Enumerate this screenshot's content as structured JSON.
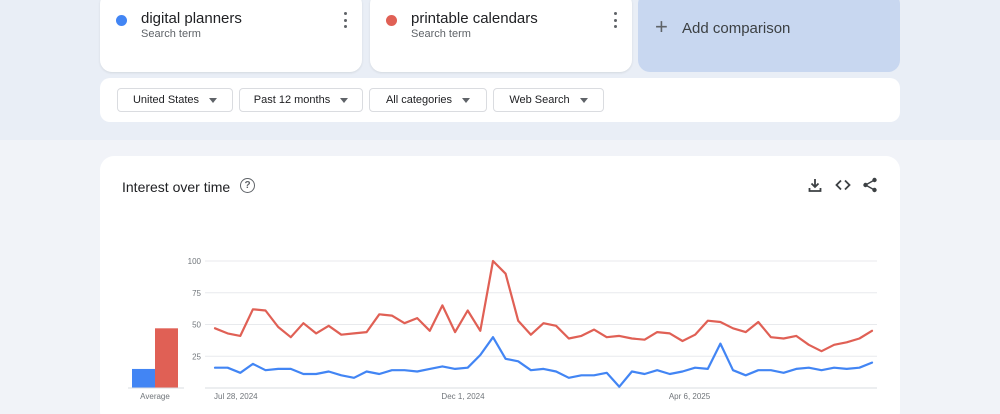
{
  "terms": [
    {
      "name": "digital planners",
      "subtitle": "Search term",
      "color": "#4285f4"
    },
    {
      "name": "printable calendars",
      "subtitle": "Search term",
      "color": "#e06055"
    }
  ],
  "add_comparison": {
    "plus": "+",
    "label": "Add comparison"
  },
  "filters": [
    {
      "label": "United States"
    },
    {
      "label": "Past 12 months"
    },
    {
      "label": "All categories"
    },
    {
      "label": "Web Search"
    }
  ],
  "panel": {
    "title": "Interest over time",
    "help_glyph": "?"
  },
  "chart_data": {
    "type": "line",
    "y_ticks": [
      "100",
      "75",
      "50",
      "25"
    ],
    "ylim": [
      0,
      100
    ],
    "x_labels": [
      {
        "label": "Jul 28, 2024",
        "index": 0
      },
      {
        "label": "Dec 1, 2024",
        "index": 18
      },
      {
        "label": "Apr 6, 2025",
        "index": 36
      }
    ],
    "series": [
      {
        "name": "printable calendars",
        "color": "#e06055",
        "values": [
          47,
          43,
          41,
          62,
          61,
          48,
          40,
          51,
          43,
          49,
          42,
          43,
          44,
          58,
          57,
          51,
          55,
          45,
          65,
          44,
          61,
          45,
          100,
          90,
          53,
          42,
          51,
          49,
          39,
          41,
          46,
          40,
          41,
          39,
          38,
          44,
          43,
          37,
          42,
          53,
          52,
          47,
          44,
          52,
          40,
          39,
          41,
          34,
          29,
          34,
          36,
          39,
          45
        ]
      },
      {
        "name": "digital planners",
        "color": "#4285f4",
        "values": [
          16,
          16,
          12,
          19,
          14,
          15,
          15,
          11,
          11,
          13,
          10,
          8,
          13,
          11,
          14,
          14,
          13,
          15,
          17,
          15,
          16,
          26,
          40,
          23,
          21,
          14,
          15,
          13,
          8,
          10,
          10,
          12,
          1,
          13,
          11,
          14,
          11,
          13,
          16,
          15,
          35,
          14,
          10,
          14,
          14,
          12,
          15,
          16,
          14,
          16,
          15,
          16,
          20
        ]
      }
    ],
    "summary": {
      "label": "Average",
      "bars": [
        {
          "name": "digital planners",
          "value": 15,
          "color": "#4285f4"
        },
        {
          "name": "printable calendars",
          "value": 47,
          "color": "#e06055"
        }
      ]
    }
  }
}
